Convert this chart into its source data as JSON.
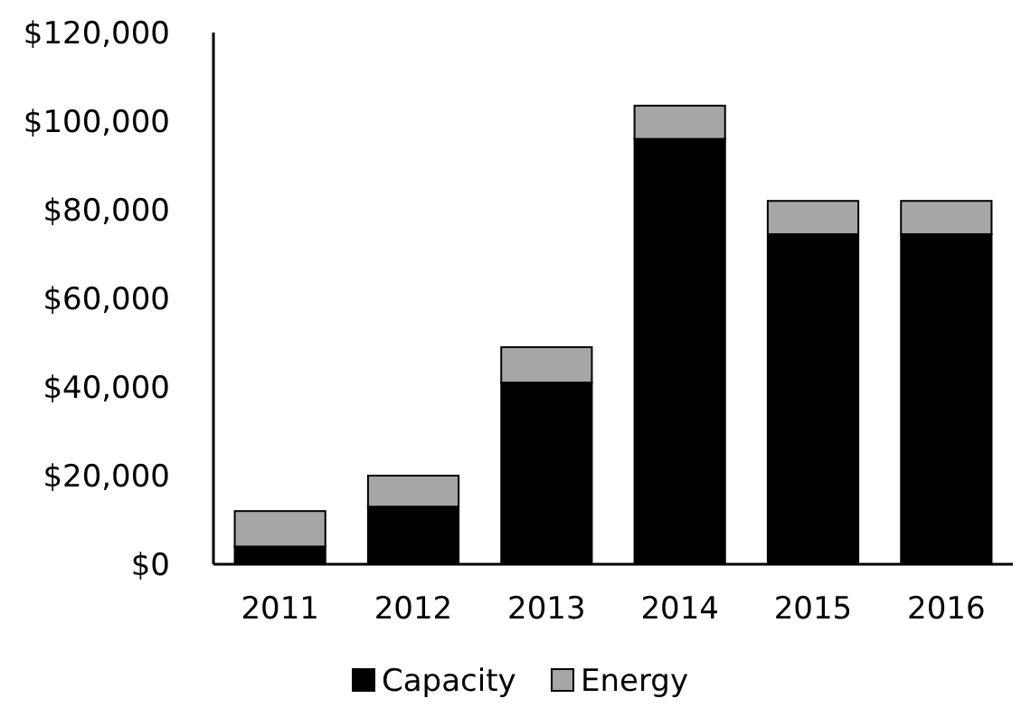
{
  "chart_data": {
    "type": "bar",
    "stacked": true,
    "categories": [
      "2011",
      "2012",
      "2013",
      "2014",
      "2015",
      "2016"
    ],
    "series": [
      {
        "name": "Capacity",
        "color": "#000000",
        "values": [
          4000,
          13000,
          41000,
          96000,
          74500,
          74500
        ]
      },
      {
        "name": "Energy",
        "color": "#a6a6a6",
        "values": [
          8000,
          7000,
          8000,
          7500,
          7500,
          7500
        ]
      }
    ],
    "ylim": [
      0,
      120000
    ],
    "yticks": [
      {
        "value": 0,
        "label": "$0"
      },
      {
        "value": 20000,
        "label": "$20,000"
      },
      {
        "value": 40000,
        "label": "$40,000"
      },
      {
        "value": 60000,
        "label": "$60,000"
      },
      {
        "value": 80000,
        "label": "$80,000"
      },
      {
        "value": 100000,
        "label": "$100,000"
      },
      {
        "value": 120000,
        "label": "$120,000"
      }
    ],
    "grid": false,
    "legend": "bottom"
  }
}
